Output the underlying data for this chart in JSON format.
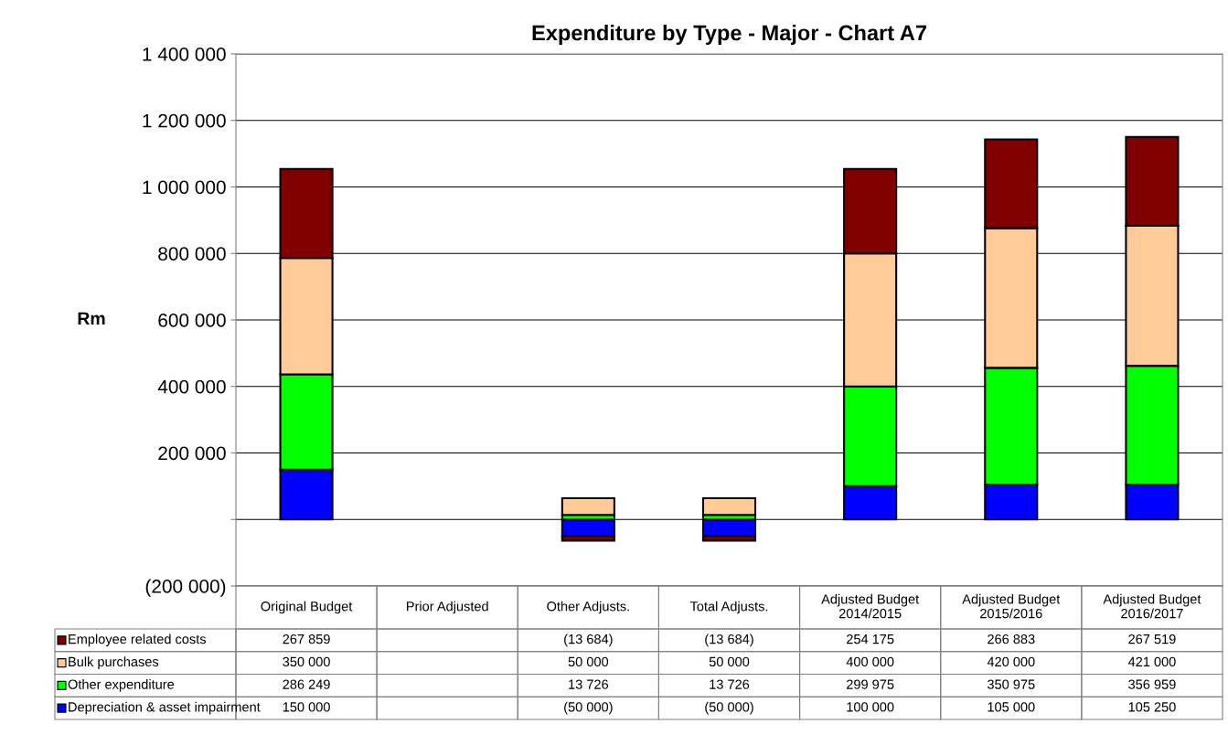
{
  "chart_data": {
    "type": "bar",
    "title": "Expenditure by Type - Major - Chart A7",
    "ylabel": "Rm",
    "stacked": true,
    "categories": [
      "Original Budget",
      "Prior Adjusted",
      "Other Adjusts.",
      "Total Adjusts.",
      "Adjusted Budget\n2014/2015",
      "Adjusted Budget\n2015/2016",
      "Adjusted Budget\n2016/2017"
    ],
    "series": [
      {
        "name": "Depreciation & asset impairment",
        "color": "#0000ff",
        "values": [
          150000,
          null,
          -50000,
          -50000,
          100000,
          105000,
          105250
        ],
        "value_labels": [
          "150 000",
          null,
          "(50 000)",
          "(50 000)",
          "100 000",
          "105 000",
          "105 250"
        ]
      },
      {
        "name": "Other expenditure",
        "color": "#00ff00",
        "values": [
          286249,
          null,
          13726,
          13726,
          299975,
          350975,
          356959
        ],
        "value_labels": [
          "286 249",
          null,
          "13 726",
          "13 726",
          "299 975",
          "350 975",
          "356 959"
        ]
      },
      {
        "name": "Bulk purchases",
        "color": "#ffcc99",
        "values": [
          350000,
          null,
          50000,
          50000,
          400000,
          420000,
          421000
        ],
        "value_labels": [
          "350 000",
          null,
          "50 000",
          "50 000",
          "400 000",
          "420 000",
          "421 000"
        ]
      },
      {
        "name": "Employee related costs",
        "color": "#800000",
        "values": [
          267859,
          null,
          -13684,
          -13684,
          254175,
          266883,
          267519
        ],
        "value_labels": [
          "267 859",
          null,
          "(13 684)",
          "(13 684)",
          "254 175",
          "266 883",
          "267 519"
        ]
      }
    ],
    "ylim": [
      -200000,
      1400000
    ],
    "yticks": [
      {
        "value": -200000,
        "label": "(200 000)"
      },
      {
        "value": 0,
        "label": null
      },
      {
        "value": 200000,
        "label": "200 000"
      },
      {
        "value": 400000,
        "label": "400 000"
      },
      {
        "value": 600000,
        "label": "600 000"
      },
      {
        "value": 800000,
        "label": "800 000"
      },
      {
        "value": 1000000,
        "label": "1 000 000"
      },
      {
        "value": 1200000,
        "label": "1 200 000"
      },
      {
        "value": 1400000,
        "label": "1 400 000"
      }
    ],
    "grid": "y",
    "legend": "bottom"
  }
}
